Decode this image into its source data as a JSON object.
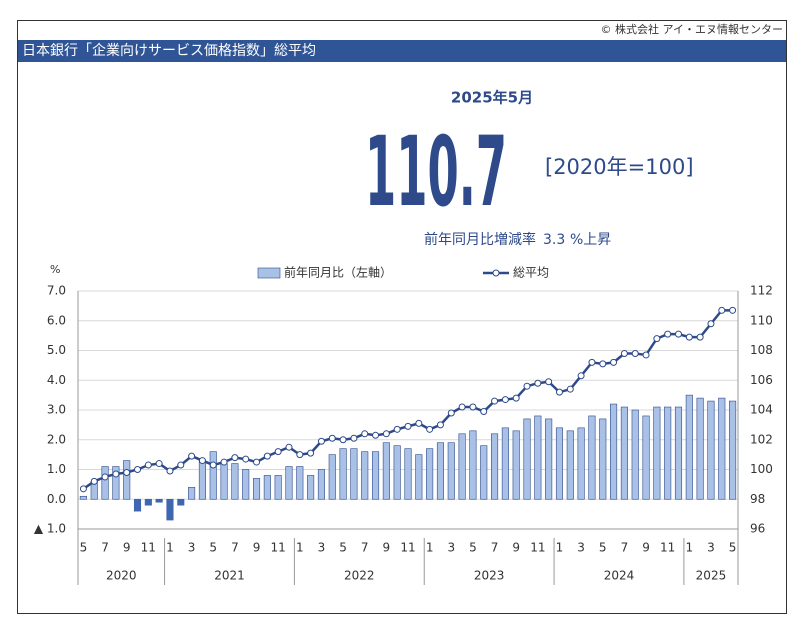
{
  "copyright": "© 株式会社 アイ・エヌ情報センター",
  "header": {
    "title": "日本銀行「企業向けサービス価格指数」総平均"
  },
  "headline": {
    "period": "2025年5月",
    "value": 110.7,
    "base": "[2020年=100]",
    "change_label": "前年同月比増減率",
    "change_value": 3.3,
    "change_suffix": "%上昇"
  },
  "chart_data": {
    "type": "combo",
    "y_unit": "%",
    "category_groups": [
      {
        "label": "2020",
        "categories": [
          "5",
          null,
          "7",
          null,
          "9",
          null,
          "11",
          null
        ]
      },
      {
        "label": "2021",
        "categories": [
          "1",
          null,
          "3",
          null,
          "5",
          null,
          "7",
          null,
          "9",
          null,
          "11",
          null
        ]
      },
      {
        "label": "2022",
        "categories": [
          "1",
          null,
          "3",
          null,
          "5",
          null,
          "7",
          null,
          "9",
          null,
          "11",
          null
        ]
      },
      {
        "label": "2023",
        "categories": [
          "1",
          null,
          "3",
          null,
          "5",
          null,
          "7",
          null,
          "9",
          null,
          "11",
          null
        ]
      },
      {
        "label": "2024",
        "categories": [
          "1",
          null,
          "3",
          null,
          "5",
          null,
          "7",
          null,
          "9",
          null,
          "11",
          null
        ]
      },
      {
        "label": "2025",
        "categories": [
          "1",
          null,
          "3",
          null,
          "5"
        ]
      }
    ],
    "series": [
      {
        "name": "前年同月比（左軸）",
        "type": "bar",
        "color": "#a9c1e6",
        "negative_color": "#3f66b0",
        "values": [
          0.1,
          0.6,
          1.1,
          1.1,
          1.3,
          -0.4,
          -0.2,
          -0.1,
          -0.7,
          -0.2,
          0.4,
          1.3,
          1.6,
          1.2,
          1.2,
          1.0,
          0.7,
          0.8,
          0.8,
          1.1,
          1.1,
          0.8,
          1.0,
          1.5,
          1.7,
          1.7,
          1.6,
          1.6,
          1.9,
          1.8,
          1.7,
          1.5,
          1.7,
          1.9,
          1.9,
          2.2,
          2.3,
          1.8,
          2.2,
          2.4,
          2.3,
          2.7,
          2.8,
          2.7,
          2.4,
          2.3,
          2.4,
          2.8,
          2.7,
          3.2,
          3.1,
          3.0,
          2.8,
          3.1,
          3.1,
          3.1,
          3.5,
          3.4,
          3.3,
          3.4,
          3.3
        ]
      },
      {
        "name": "総平均",
        "type": "line",
        "axis": "y2",
        "color": "#2e4a8a",
        "values": [
          98.7,
          99.2,
          99.5,
          99.7,
          99.8,
          100.0,
          100.3,
          100.4,
          99.9,
          100.3,
          100.9,
          100.6,
          100.3,
          100.5,
          100.8,
          100.7,
          100.5,
          100.9,
          101.2,
          101.5,
          101.0,
          101.1,
          101.9,
          102.1,
          102.0,
          102.1,
          102.4,
          102.3,
          102.4,
          102.7,
          102.9,
          103.1,
          102.7,
          103.0,
          103.8,
          104.2,
          104.2,
          103.9,
          104.6,
          104.7,
          104.8,
          105.6,
          105.8,
          105.9,
          105.2,
          105.4,
          106.3,
          107.2,
          107.1,
          107.2,
          107.8,
          107.8,
          107.7,
          108.8,
          109.1,
          109.1,
          108.9,
          108.9,
          109.8,
          110.7,
          110.7
        ]
      }
    ],
    "ylim": [
      -1,
      7
    ],
    "yticks": [
      {
        "value": 7,
        "label": "7.0"
      },
      {
        "value": 6,
        "label": "6.0"
      },
      {
        "value": 5,
        "label": "5.0"
      },
      {
        "value": 4,
        "label": "4.0"
      },
      {
        "value": 3,
        "label": "3.0"
      },
      {
        "value": 2,
        "label": "2.0"
      },
      {
        "value": 1,
        "label": "1.0"
      },
      {
        "value": 0,
        "label": "0.0"
      },
      {
        "value": -1,
        "label": "▲ 1.0"
      }
    ],
    "y2lim": [
      96,
      112
    ],
    "y2ticks": [
      112,
      110,
      108,
      106,
      104,
      102,
      100,
      98,
      96
    ],
    "grid": true
  }
}
